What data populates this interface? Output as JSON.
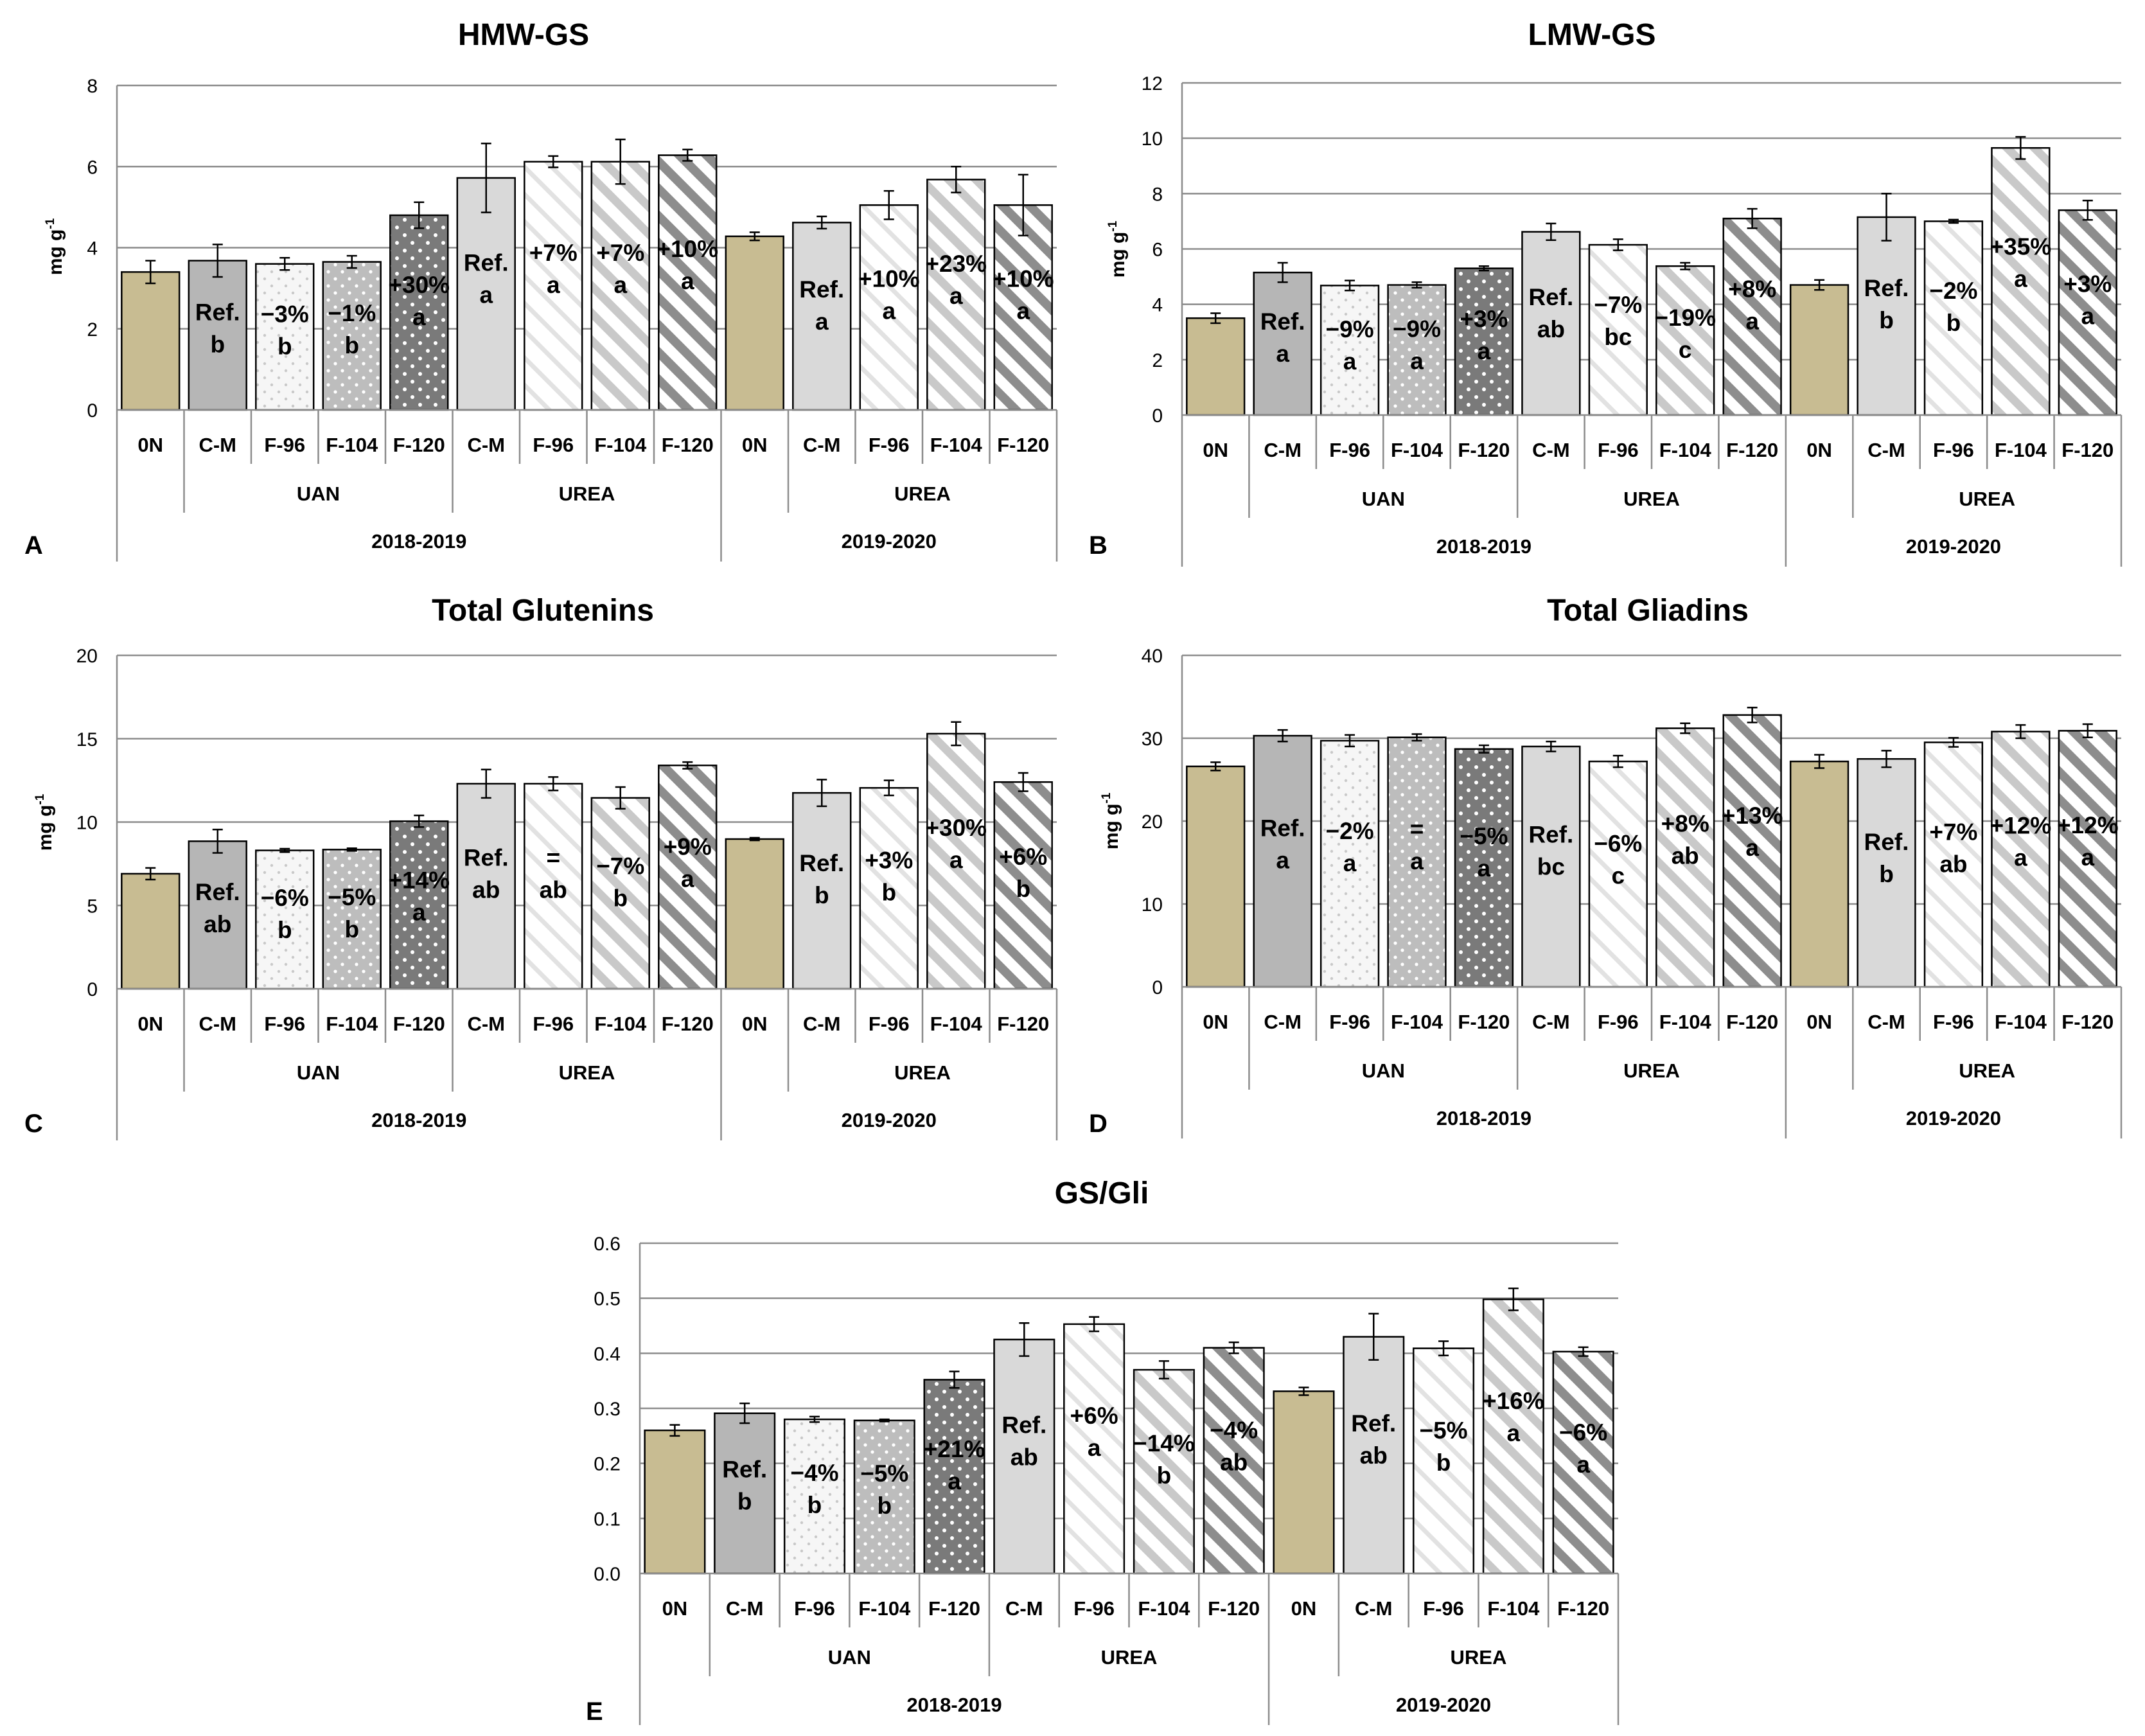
{
  "figure": {
    "categories": [
      "0N",
      "C-M",
      "F-96",
      "F-104",
      "F-120",
      "C-M",
      "F-96",
      "F-104",
      "F-120",
      "0N",
      "C-M",
      "F-96",
      "F-104",
      "F-120"
    ],
    "fertilizer_groups": [
      "UAN",
      "UREA",
      "UREA"
    ],
    "season_groups": [
      "2018-2019",
      "2019-2020"
    ]
  },
  "chart_data": [
    {
      "id": "A",
      "type": "bar",
      "title": "HMW-GS",
      "panel_letter": "A",
      "ylabel": "mg g",
      "ylabel_sup": "-1",
      "ylim": [
        0,
        8
      ],
      "yticks": [
        "0",
        "2",
        "4",
        "6",
        "8"
      ],
      "grid": true,
      "values": [
        3.4,
        3.68,
        3.6,
        3.65,
        4.8,
        5.72,
        6.12,
        6.12,
        6.28,
        4.28,
        4.62,
        5.05,
        5.68,
        5.05
      ],
      "errors": [
        0.28,
        0.4,
        0.15,
        0.15,
        0.32,
        0.85,
        0.14,
        0.55,
        0.14,
        0.1,
        0.15,
        0.35,
        0.32,
        0.75
      ],
      "annotations": [
        [
          "",
          ""
        ],
        [
          "Ref.",
          "b"
        ],
        [
          "−3%",
          "b"
        ],
        [
          "−1%",
          "b"
        ],
        [
          "+30%",
          "a"
        ],
        [
          "Ref.",
          "a"
        ],
        [
          "+7%",
          "a"
        ],
        [
          "+7%",
          "a"
        ],
        [
          "+10%",
          "a"
        ],
        [
          "",
          ""
        ],
        [
          "Ref.",
          "a"
        ],
        [
          "+10%",
          "a"
        ],
        [
          "+23%",
          "a"
        ],
        [
          "+10%",
          "a"
        ]
      ]
    },
    {
      "id": "B",
      "type": "bar",
      "title": "LMW-GS",
      "panel_letter": "B",
      "ylabel": "mg g",
      "ylabel_sup": "-1",
      "ylim": [
        0,
        12
      ],
      "yticks": [
        "0",
        "2",
        "4",
        "6",
        "8",
        "10",
        "12"
      ],
      "grid": true,
      "values": [
        3.5,
        5.15,
        4.68,
        4.7,
        5.3,
        6.62,
        6.15,
        5.38,
        7.1,
        4.7,
        7.15,
        7.0,
        9.65,
        7.4
      ],
      "errors": [
        0.18,
        0.35,
        0.18,
        0.1,
        0.08,
        0.3,
        0.2,
        0.12,
        0.35,
        0.18,
        0.85,
        0.06,
        0.4,
        0.35
      ],
      "annotations": [
        [
          "",
          ""
        ],
        [
          "Ref.",
          "a"
        ],
        [
          "−9%",
          "a"
        ],
        [
          "−9%",
          "a"
        ],
        [
          "+3%",
          "a"
        ],
        [
          "Ref.",
          "ab"
        ],
        [
          "−7%",
          "bc"
        ],
        [
          "−19%",
          "c"
        ],
        [
          "+8%",
          "a"
        ],
        [
          "",
          ""
        ],
        [
          "Ref.",
          "b"
        ],
        [
          "−2%",
          "b"
        ],
        [
          "+35%",
          "a"
        ],
        [
          "+3%",
          "a"
        ]
      ]
    },
    {
      "id": "C",
      "type": "bar",
      "title": "Total Glutenins",
      "panel_letter": "C",
      "ylabel": "mg g",
      "ylabel_sup": "-1",
      "ylim": [
        0,
        20
      ],
      "yticks": [
        "0",
        "5",
        "10",
        "15",
        "20"
      ],
      "grid": true,
      "values": [
        6.9,
        8.85,
        8.3,
        8.35,
        10.05,
        12.3,
        12.3,
        11.45,
        13.4,
        8.98,
        11.75,
        12.05,
        15.3,
        12.4
      ],
      "errors": [
        0.35,
        0.7,
        0.1,
        0.08,
        0.35,
        0.85,
        0.4,
        0.65,
        0.2,
        0.08,
        0.8,
        0.45,
        0.7,
        0.55
      ],
      "annotations": [
        [
          "",
          ""
        ],
        [
          "Ref.",
          "ab"
        ],
        [
          "−6%",
          "b"
        ],
        [
          "−5%",
          "b"
        ],
        [
          "+14%",
          "a"
        ],
        [
          "Ref.",
          "ab"
        ],
        [
          "=",
          "ab"
        ],
        [
          "−7%",
          "b"
        ],
        [
          "+9%",
          "a"
        ],
        [
          "",
          ""
        ],
        [
          "Ref.",
          "b"
        ],
        [
          "+3%",
          "b"
        ],
        [
          "+30%",
          "a"
        ],
        [
          "+6%",
          "b"
        ]
      ]
    },
    {
      "id": "D",
      "type": "bar",
      "title": "Total Gliadins",
      "panel_letter": "D",
      "ylabel": "mg g",
      "ylabel_sup": "-1",
      "ylim": [
        0,
        40
      ],
      "yticks": [
        "0",
        "10",
        "20",
        "30",
        "40"
      ],
      "grid": true,
      "values": [
        26.6,
        30.3,
        29.7,
        30.1,
        28.7,
        29.0,
        27.2,
        31.2,
        32.8,
        27.2,
        27.5,
        29.5,
        30.8,
        30.9
      ],
      "errors": [
        0.5,
        0.7,
        0.7,
        0.4,
        0.45,
        0.6,
        0.7,
        0.6,
        0.9,
        0.8,
        1.0,
        0.55,
        0.8,
        0.8
      ],
      "annotations": [
        [
          "",
          ""
        ],
        [
          "Ref.",
          "a"
        ],
        [
          "−2%",
          "a"
        ],
        [
          "=",
          "a"
        ],
        [
          "−5%",
          "a"
        ],
        [
          "Ref.",
          "bc"
        ],
        [
          "−6%",
          "c"
        ],
        [
          "+8%",
          "ab"
        ],
        [
          "+13%",
          "a"
        ],
        [
          "",
          ""
        ],
        [
          "Ref.",
          "b"
        ],
        [
          "+7%",
          "ab"
        ],
        [
          "+12%",
          "a"
        ],
        [
          "+12%",
          "a"
        ]
      ]
    },
    {
      "id": "E",
      "type": "bar",
      "title": "GS/Gli",
      "panel_letter": "E",
      "ylabel": "",
      "ylabel_sup": "",
      "ylim": [
        0,
        0.6
      ],
      "yticks": [
        "0.0",
        "0.1",
        "0.2",
        "0.3",
        "0.4",
        "0.5",
        "0.6"
      ],
      "grid": true,
      "values": [
        0.26,
        0.291,
        0.28,
        0.278,
        0.352,
        0.425,
        0.453,
        0.37,
        0.41,
        0.331,
        0.43,
        0.409,
        0.498,
        0.403
      ],
      "errors": [
        0.01,
        0.018,
        0.005,
        0.002,
        0.015,
        0.03,
        0.013,
        0.016,
        0.01,
        0.007,
        0.042,
        0.013,
        0.02,
        0.008
      ],
      "annotations": [
        [
          "",
          ""
        ],
        [
          "Ref.",
          "b"
        ],
        [
          "−4%",
          "b"
        ],
        [
          "−5%",
          "b"
        ],
        [
          "+21%",
          "a"
        ],
        [
          "Ref.",
          "ab"
        ],
        [
          "+6%",
          "a"
        ],
        [
          "−14%",
          "b"
        ],
        [
          "−4%",
          "ab"
        ],
        [
          "",
          ""
        ],
        [
          "Ref.",
          "ab"
        ],
        [
          "−5%",
          "b"
        ],
        [
          "+16%",
          "a"
        ],
        [
          "−6%",
          "a"
        ]
      ]
    }
  ],
  "colors": {
    "zeroN": "#c8bc92",
    "cm_uan": "#b6b6b6",
    "cm_urea": "#d9d9d9",
    "bar_edge": "#000000",
    "grid": "#8c8c8c",
    "axis": "#8c8c8c",
    "hatch_light": "#e2e2e2",
    "hatch_mid": "#c9c9c9",
    "hatch_dark": "#8d8d8d",
    "dots_light_bg": "#f6f6f6",
    "dots_mid_bg": "#bdbdbd",
    "dots_dark_bg": "#7a7a7a"
  }
}
